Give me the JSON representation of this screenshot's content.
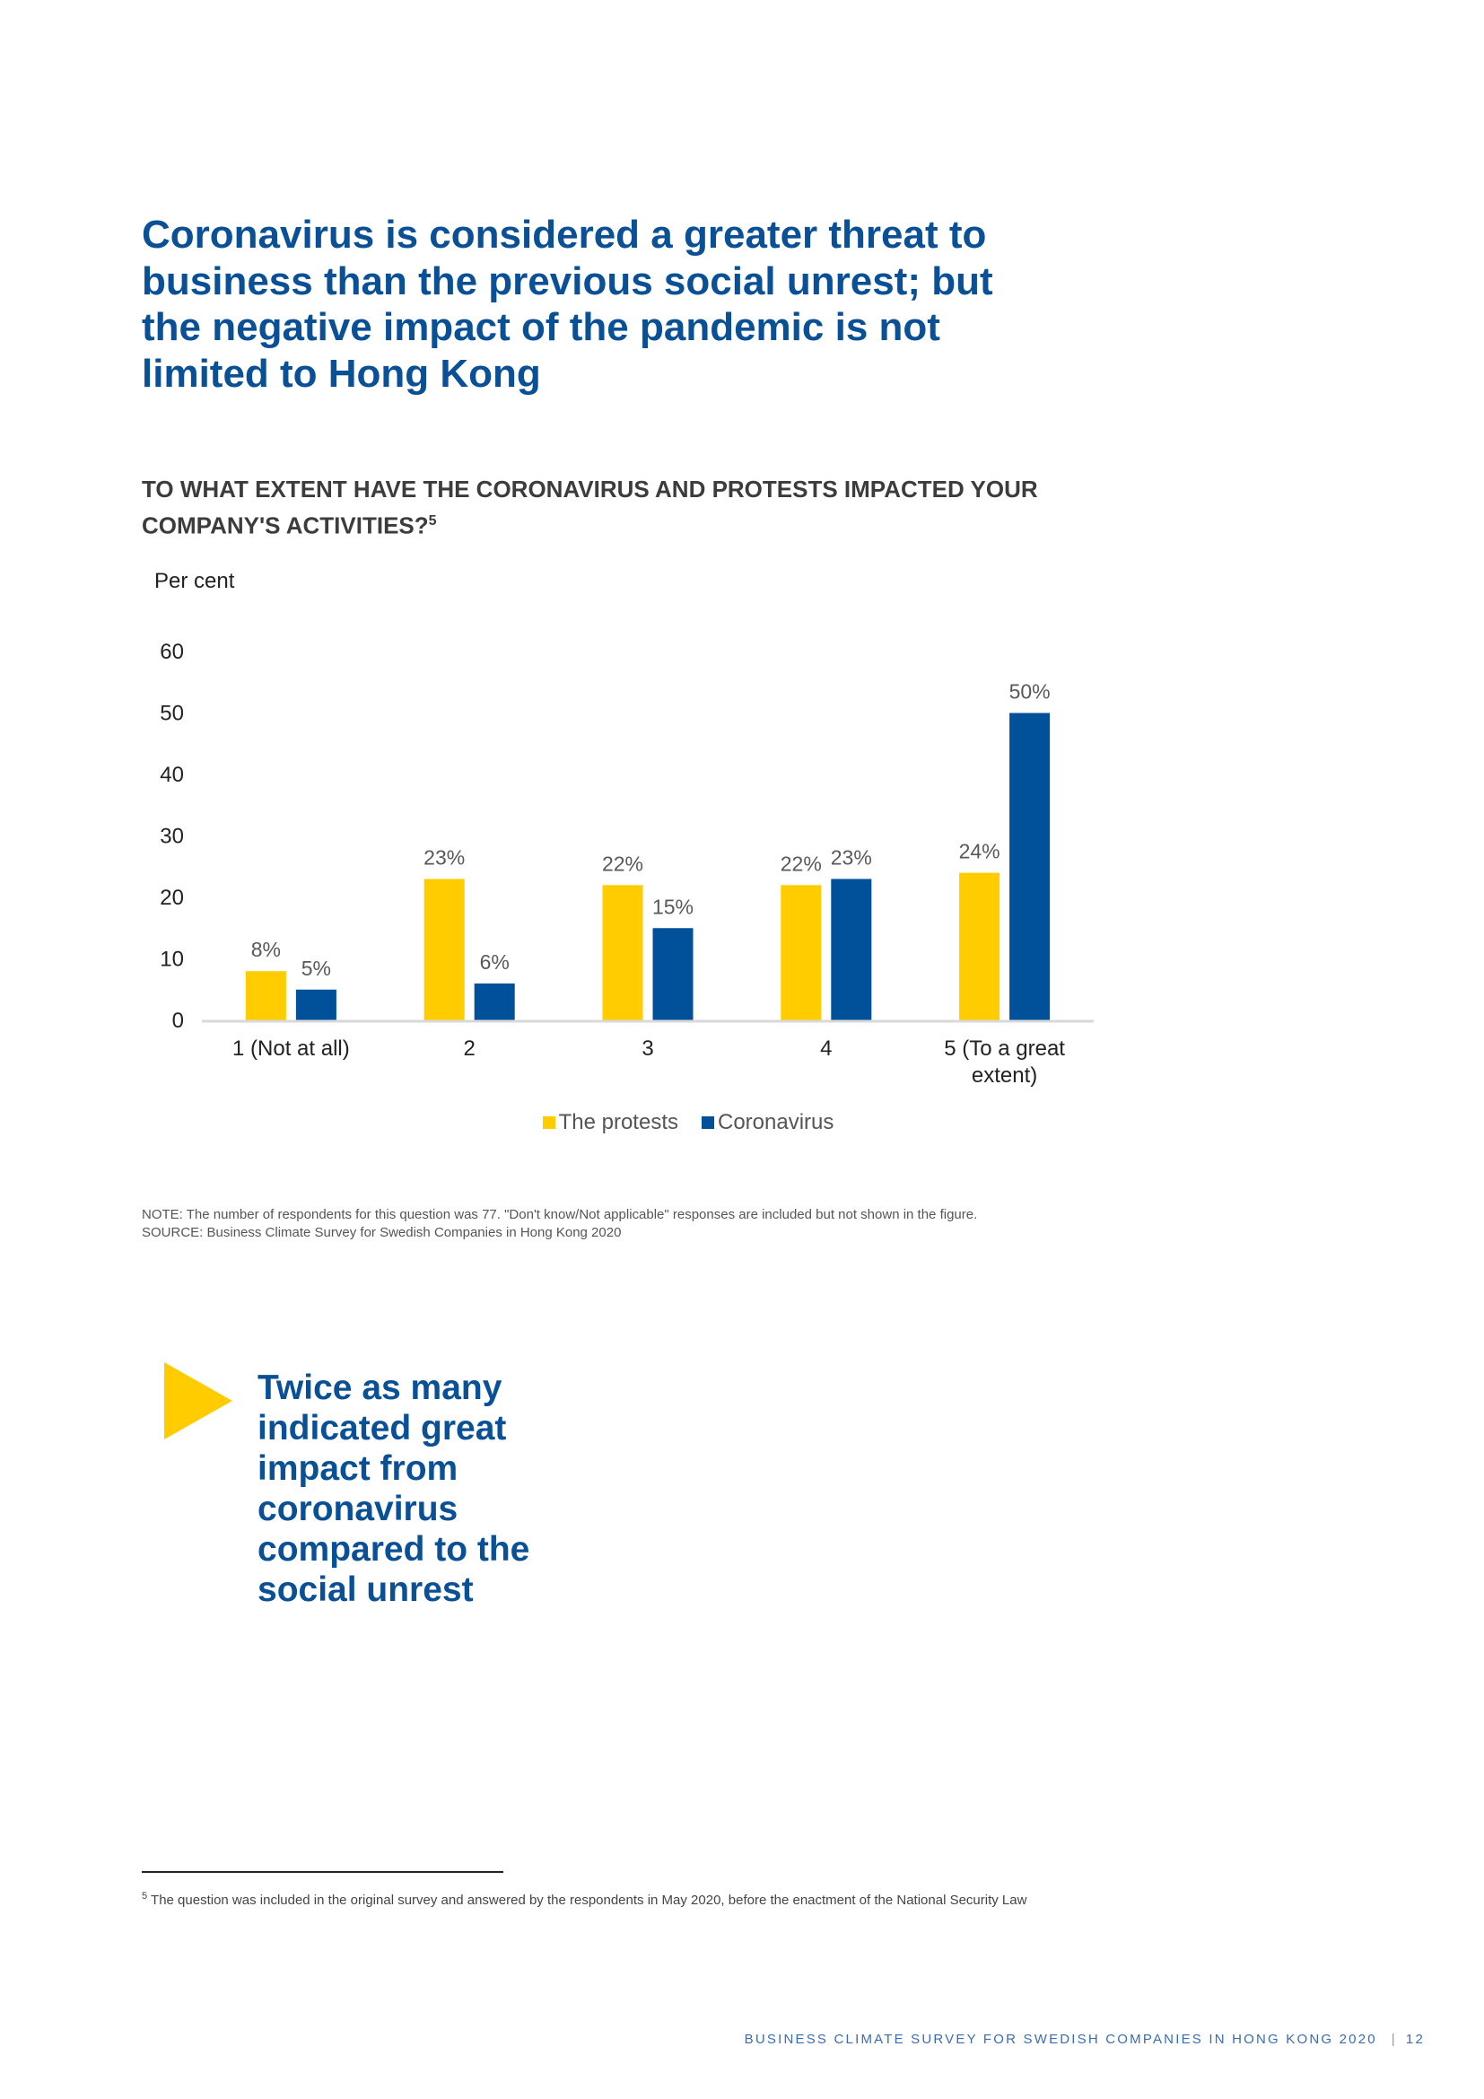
{
  "headline": "Coronavirus is considered a greater threat to business than the previous social unrest; but the negative impact of the pandemic is not limited to Hong Kong",
  "question": "TO WHAT EXTENT HAVE THE CORONAVIRUS AND PROTESTS IMPACTED YOUR COMPANY'S ACTIVITIES?",
  "question_footnote_ref": "5",
  "chart_data": {
    "type": "bar",
    "ylabel": "Per cent",
    "ylim": [
      0,
      60
    ],
    "yticks": [
      "0",
      "10",
      "20",
      "30",
      "40",
      "50",
      "60"
    ],
    "grid": false,
    "legend_position": "bottom",
    "categories": [
      "1 (Not at all)",
      "2",
      "3",
      "4",
      "5 (To a great extent)"
    ],
    "series": [
      {
        "name": "The protests",
        "color": "#ffcc00",
        "values": [
          8,
          23,
          22,
          22,
          24
        ],
        "labels": [
          "8%",
          "23%",
          "22%",
          "22%",
          "24%"
        ]
      },
      {
        "name": "Coronavirus",
        "color": "#00509a",
        "values": [
          5,
          6,
          15,
          23,
          50
        ],
        "labels": [
          "5%",
          "6%",
          "15%",
          "23%",
          "50%"
        ]
      }
    ]
  },
  "note": "NOTE: The number of respondents for this question was 77. \"Don't know/Not applicable\" responses are included but not shown in the figure.",
  "source": "SOURCE: Business Climate Survey for Swedish Companies in Hong Kong 2020",
  "callout": "Twice as many indicated great impact from coronavirus compared to the social unrest",
  "accent_color": "#ffcc00",
  "brand_color": "#0a5096",
  "footnote": {
    "number": "5",
    "text": "The question was included in the original survey and answered by the respondents in May 2020, before the enactment of the National Security Law"
  },
  "footer": {
    "title": "BUSINESS CLIMATE SURVEY FOR SWEDISH COMPANIES IN HONG KONG 2020",
    "separator": "|",
    "page": "12"
  }
}
